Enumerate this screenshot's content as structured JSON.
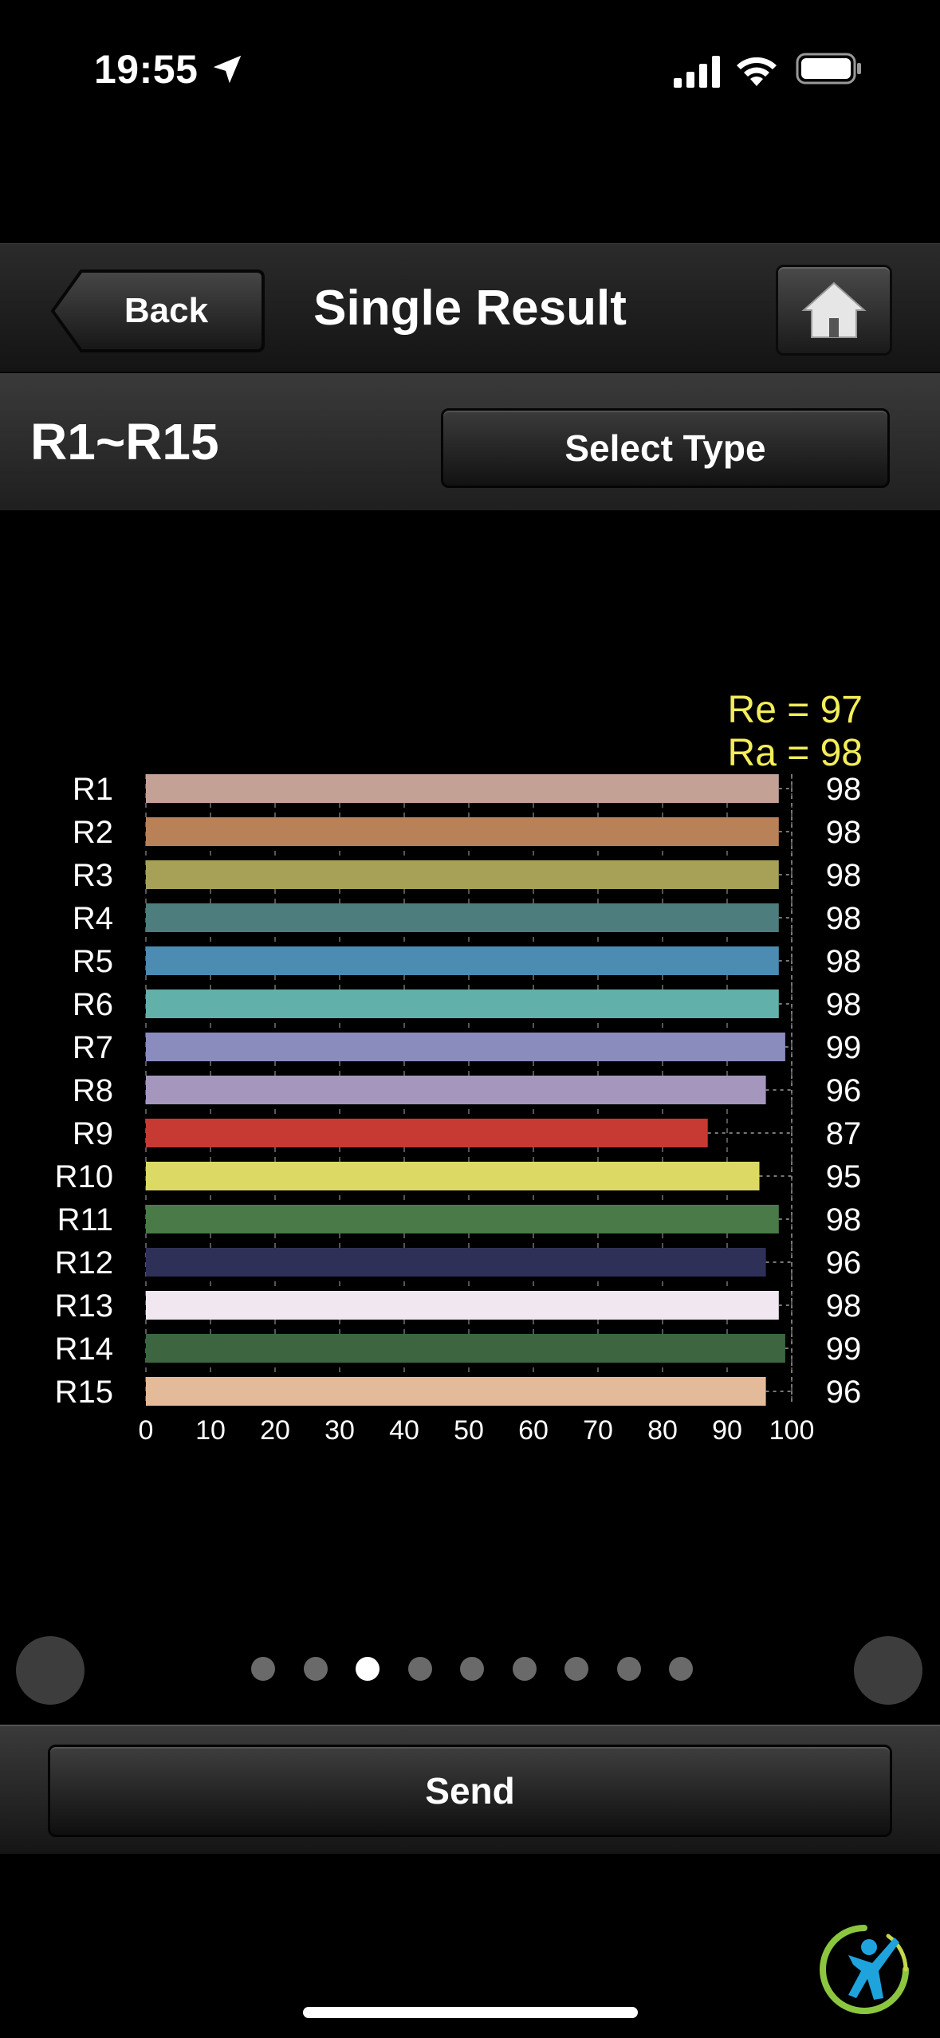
{
  "status_bar": {
    "time": "19:55"
  },
  "nav": {
    "back_label": "Back",
    "title": "Single Result"
  },
  "type_bar": {
    "range_label": "R1~R15",
    "select_type_label": "Select Type"
  },
  "chart_data": {
    "type": "bar",
    "orientation": "horizontal",
    "categories": [
      "R1",
      "R2",
      "R3",
      "R4",
      "R5",
      "R6",
      "R7",
      "R8",
      "R9",
      "R10",
      "R11",
      "R12",
      "R13",
      "R14",
      "R15"
    ],
    "values": [
      98,
      98,
      98,
      98,
      98,
      98,
      99,
      96,
      87,
      95,
      98,
      96,
      98,
      99,
      96
    ],
    "colors": [
      "#c4a195",
      "#b98158",
      "#a6a157",
      "#4d7d7c",
      "#4c8bb2",
      "#62b0aa",
      "#8a8cbd",
      "#a596be",
      "#c73a33",
      "#dcd964",
      "#497a48",
      "#2f3058",
      "#f0e7f1",
      "#3d6640",
      "#e4bb9a"
    ],
    "xticks": [
      0,
      10,
      20,
      30,
      40,
      50,
      60,
      70,
      80,
      90,
      100
    ],
    "xlim": [
      0,
      100
    ],
    "grid": true,
    "annotations": [
      "Re = 97",
      "Ra = 98"
    ],
    "annotation_color": "#f2ee5a"
  },
  "pager": {
    "count": 9,
    "active_index": 2
  },
  "send": {
    "label": "Send"
  },
  "icons": {
    "location": "location-arrow-icon",
    "signal": "cellular-signal-icon",
    "wifi": "wifi-icon",
    "battery": "battery-icon",
    "home": "home-icon",
    "logo": "brand-logo-icon"
  }
}
